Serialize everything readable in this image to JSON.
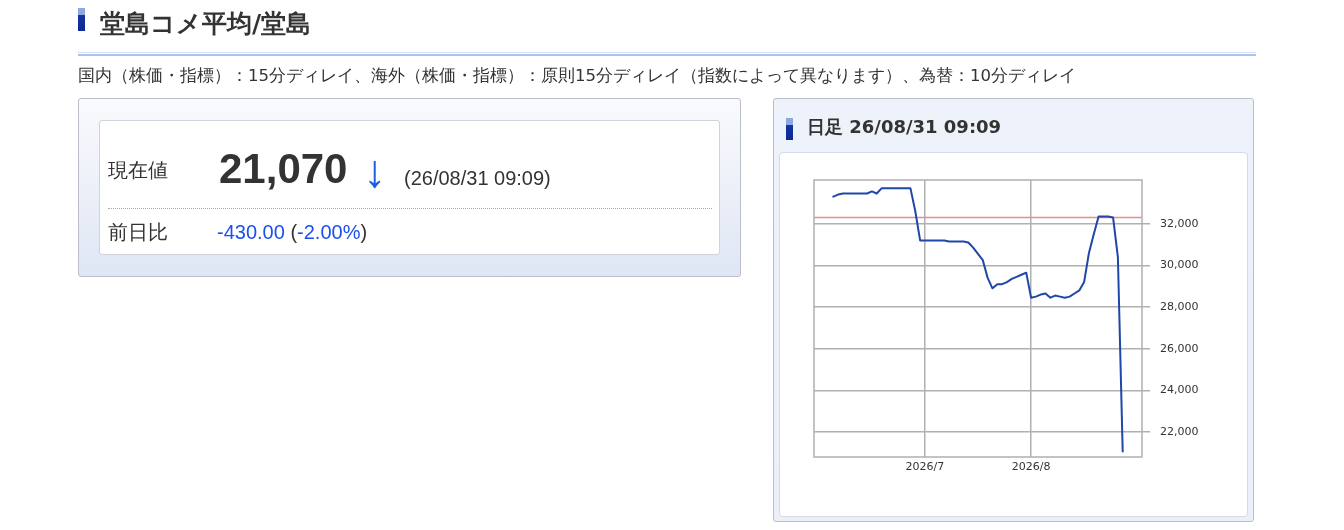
{
  "chart_data": [
    {
      "type": "other",
      "title": "堂島コメ平均/堂島",
      "subtitle": "国内（株価・指標）：15分ディレイ、海外（株価・指標）：原則15分ディレイ（指数によって異なります）、為替：10分ディレイ",
      "annotations": [
        "現在値",
        "21,070",
        "↓",
        "(26/08/31 09:09)",
        "前日比",
        "-430.00 (-2.00%)"
      ]
    },
    {
      "type": "line",
      "title": "日足 26/08/31 09:09",
      "categories": [
        null,
        null,
        null,
        null,
        null,
        null,
        null,
        null,
        null,
        null,
        null,
        null,
        null,
        null,
        null,
        null,
        null,
        null,
        null,
        null,
        null,
        null,
        null,
        "2026/7",
        null,
        null,
        null,
        null,
        null,
        null,
        null,
        null,
        null,
        null,
        null,
        null,
        null,
        null,
        null,
        null,
        null,
        null,
        null,
        null,
        null,
        "2026/8",
        null,
        null,
        null,
        null,
        null,
        null,
        null,
        null,
        null,
        null,
        null,
        null,
        null,
        null,
        null,
        null,
        null,
        null,
        null,
        null,
        null,
        null,
        null
      ],
      "values": [
        null,
        null,
        null,
        null,
        33300,
        33400,
        33450,
        33450,
        33450,
        33450,
        33450,
        33450,
        33550,
        33450,
        33700,
        33700,
        33700,
        33700,
        33700,
        33700,
        33700,
        32600,
        31200,
        31200,
        31200,
        31200,
        31200,
        31200,
        31150,
        31150,
        31150,
        31150,
        31100,
        30850,
        30550,
        30250,
        29400,
        28900,
        29100,
        29100,
        29200,
        29350,
        29450,
        29550,
        29650,
        28450,
        28500,
        28600,
        28650,
        28450,
        28550,
        28500,
        28450,
        28500,
        28650,
        28800,
        29200,
        30600,
        31500,
        32350,
        32350,
        32350,
        32300,
        30400,
        21070,
        null,
        null,
        null,
        null
      ],
      "color": "#1f47a8",
      "ylim": [
        20800,
        34100
      ],
      "yticks": [
        {
          "value": 22000,
          "label": "22,000"
        },
        {
          "value": 24000,
          "label": "24,000"
        },
        {
          "value": 26000,
          "label": "26,000"
        },
        {
          "value": 28000,
          "label": "28,000"
        },
        {
          "value": 30000,
          "label": "30,000"
        },
        {
          "value": 32000,
          "label": "32,000"
        }
      ],
      "grid": true,
      "ref_lines": [
        {
          "axis": "y",
          "value": 32300,
          "color": "#f08a8a"
        }
      ]
    }
  ]
}
